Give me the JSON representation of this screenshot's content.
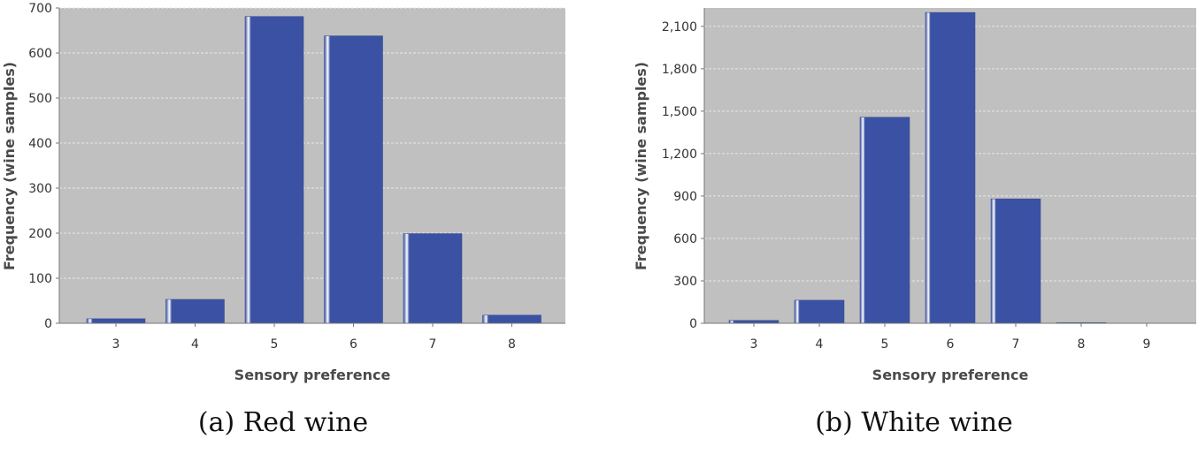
{
  "colors": {
    "plot_bg": "#c0c0c0",
    "bar": "#3b52a4",
    "grid": "#e8e8e8"
  },
  "chart_data": [
    {
      "type": "bar",
      "caption": "(a) Red wine",
      "xlabel": "Sensory preference",
      "ylabel": "Frequency (wine samples)",
      "categories": [
        "3",
        "4",
        "5",
        "6",
        "7",
        "8"
      ],
      "values": [
        10,
        53,
        681,
        638,
        199,
        18
      ],
      "ylim": [
        0,
        700
      ],
      "yticks": [
        0,
        100,
        200,
        300,
        400,
        500,
        600,
        700
      ],
      "ytick_labels": [
        "0",
        "100",
        "200",
        "300",
        "400",
        "500",
        "600",
        "700"
      ],
      "grid": true,
      "legend": "none"
    },
    {
      "type": "bar",
      "caption": "(b) White wine",
      "xlabel": "Sensory preference",
      "ylabel": "Frequency (wine samples)",
      "categories": [
        "3",
        "4",
        "5",
        "6",
        "7",
        "8",
        "9"
      ],
      "values": [
        20,
        163,
        1457,
        2198,
        880,
        5,
        0
      ],
      "ylim": [
        0,
        2230
      ],
      "yticks": [
        0,
        300,
        600,
        900,
        1200,
        1500,
        1800,
        2100
      ],
      "ytick_labels": [
        "0",
        "300",
        "600",
        "900",
        "1,200",
        "1,500",
        "1,800",
        "2,100"
      ],
      "grid": true,
      "legend": "none"
    }
  ]
}
